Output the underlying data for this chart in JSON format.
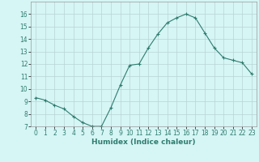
{
  "x": [
    0,
    1,
    2,
    3,
    4,
    5,
    6,
    7,
    8,
    9,
    10,
    11,
    12,
    13,
    14,
    15,
    16,
    17,
    18,
    19,
    20,
    21,
    22,
    23
  ],
  "y": [
    9.3,
    9.1,
    8.7,
    8.4,
    7.8,
    7.3,
    7.0,
    7.0,
    8.5,
    10.3,
    11.9,
    12.0,
    13.3,
    14.4,
    15.3,
    15.7,
    16.0,
    15.7,
    14.5,
    13.3,
    12.5,
    12.3,
    12.1,
    11.2
  ],
  "line_color": "#2e7d6e",
  "marker": "+",
  "marker_size": 3,
  "bg_color": "#d6f5f5",
  "grid_color": "#b8d4d4",
  "xlabel": "Humidex (Indice chaleur)",
  "ylim": [
    7,
    17
  ],
  "xlim": [
    -0.5,
    23.5
  ],
  "yticks": [
    7,
    8,
    9,
    10,
    11,
    12,
    13,
    14,
    15,
    16
  ],
  "xticks": [
    0,
    1,
    2,
    3,
    4,
    5,
    6,
    7,
    8,
    9,
    10,
    11,
    12,
    13,
    14,
    15,
    16,
    17,
    18,
    19,
    20,
    21,
    22,
    23
  ],
  "tick_label_fontsize": 5.5,
  "xlabel_fontsize": 6.5
}
